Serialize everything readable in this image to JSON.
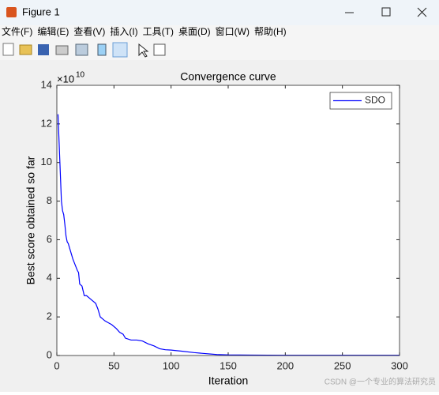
{
  "window": {
    "title": "Figure 1",
    "menu": [
      "文件(F)",
      "编辑(E)",
      "查看(V)",
      "插入(I)",
      "工具(T)",
      "桌面(D)",
      "窗口(W)",
      "帮助(H)"
    ],
    "watermark": "CSDN @一个专业的算法研究员"
  },
  "chart_data": {
    "type": "line",
    "title": "Convergence curve",
    "x_label": "Iteration",
    "y_label": "Best score obtained so far",
    "y_exponent": {
      "base": "×10",
      "power": "10"
    },
    "x": [
      1,
      2,
      3,
      4,
      5,
      6,
      7,
      8,
      9,
      10,
      12,
      14,
      16,
      18,
      19,
      20,
      22,
      24,
      26,
      28,
      30,
      32,
      34,
      36,
      38,
      40,
      42,
      45,
      48,
      52,
      55,
      58,
      60,
      65,
      70,
      75,
      80,
      85,
      90,
      95,
      100,
      110,
      120,
      130,
      140,
      150,
      170,
      200,
      250,
      300
    ],
    "series": [
      {
        "name": "SDO",
        "color": "#0000ff",
        "values": [
          12.5,
          11,
          9.5,
          8,
          7.5,
          7.3,
          6.8,
          6.2,
          5.9,
          5.8,
          5.4,
          5.0,
          4.7,
          4.4,
          4.3,
          3.7,
          3.6,
          3.1,
          3.1,
          3.0,
          2.9,
          2.8,
          2.7,
          2.4,
          2.0,
          1.9,
          1.8,
          1.7,
          1.6,
          1.4,
          1.2,
          1.1,
          0.9,
          0.8,
          0.8,
          0.75,
          0.6,
          0.5,
          0.35,
          0.3,
          0.28,
          0.22,
          0.15,
          0.1,
          0.05,
          0.03,
          0.02,
          0.01,
          0.01,
          0.01
        ]
      }
    ],
    "xlim": [
      0,
      300
    ],
    "xticks": [
      0,
      50,
      100,
      150,
      200,
      250,
      300
    ],
    "ylim": [
      0,
      14
    ],
    "yticks": [
      0,
      2,
      4,
      6,
      8,
      10,
      12,
      14
    ],
    "grid": false,
    "legend": "top-right"
  }
}
